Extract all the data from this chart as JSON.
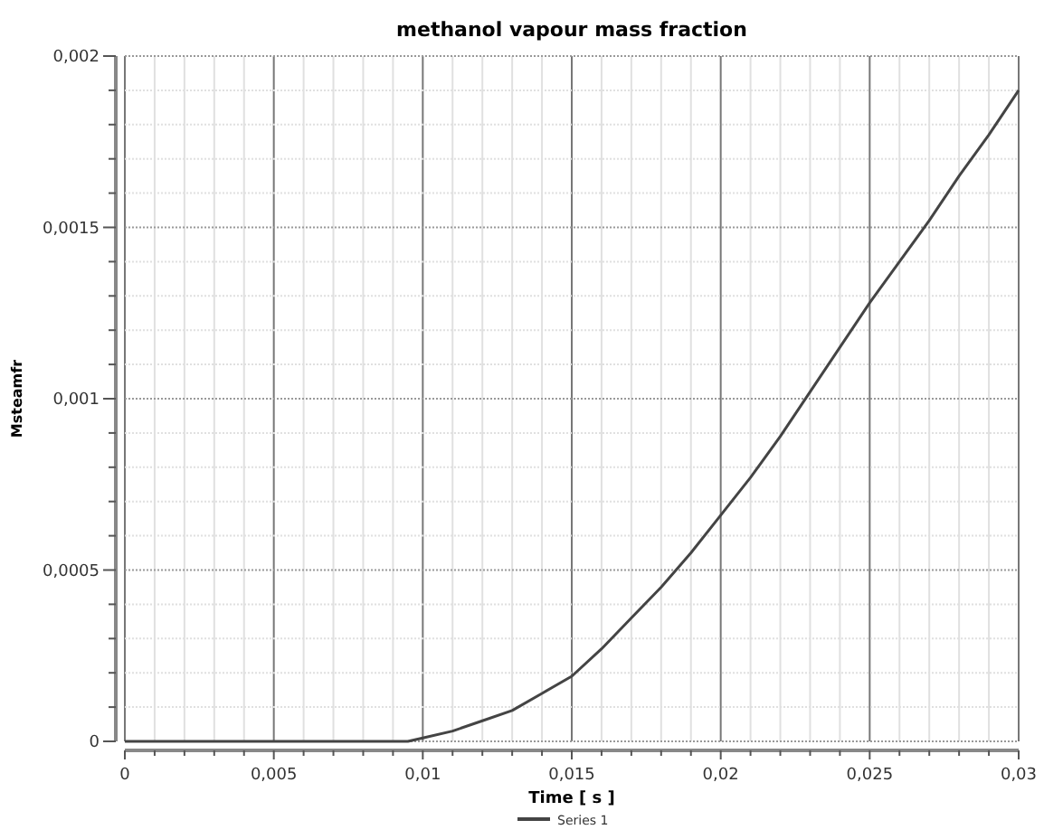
{
  "chart_data": {
    "type": "line",
    "title": "methanol vapour mass fraction",
    "xlabel": "Time [ s ]",
    "ylabel": "Msteamfr",
    "x": [
      0,
      0.005,
      0.009,
      0.0095,
      0.01,
      0.011,
      0.012,
      0.013,
      0.014,
      0.015,
      0.016,
      0.017,
      0.018,
      0.019,
      0.02,
      0.021,
      0.022,
      0.023,
      0.024,
      0.025,
      0.026,
      0.027,
      0.028,
      0.029,
      0.03
    ],
    "series": [
      {
        "name": "Series 1",
        "color": "#444444",
        "values": [
          0,
          0,
          0,
          0,
          1e-05,
          3e-05,
          6e-05,
          9e-05,
          0.00014,
          0.00019,
          0.00027,
          0.00036,
          0.00045,
          0.00055,
          0.00066,
          0.00077,
          0.00089,
          0.00102,
          0.00115,
          0.00128,
          0.0014,
          0.00152,
          0.00165,
          0.00177,
          0.0019
        ]
      }
    ],
    "xlim": [
      0,
      0.03
    ],
    "ylim": [
      0,
      0.002
    ],
    "xticks": [
      0,
      {
        "value": 0.001,
        "label": null
      },
      {
        "value": 0.002,
        "label": null
      },
      {
        "value": 0.003,
        "label": null
      },
      {
        "value": 0.004,
        "label": null
      },
      {
        "value": 0.005,
        "label": "0,005"
      },
      {
        "value": 0.006,
        "label": null
      },
      {
        "value": 0.007,
        "label": null
      },
      {
        "value": 0.008,
        "label": null
      },
      {
        "value": 0.009,
        "label": null
      },
      {
        "value": 0.01,
        "label": "0,01"
      },
      {
        "value": 0.011,
        "label": null
      },
      {
        "value": 0.012,
        "label": null
      },
      {
        "value": 0.013,
        "label": null
      },
      {
        "value": 0.014,
        "label": null
      },
      {
        "value": 0.015,
        "label": "0,015"
      },
      {
        "value": 0.016,
        "label": null
      },
      {
        "value": 0.017,
        "label": null
      },
      {
        "value": 0.018,
        "label": null
      },
      {
        "value": 0.019,
        "label": null
      },
      {
        "value": 0.02,
        "label": "0,02"
      },
      {
        "value": 0.021,
        "label": null
      },
      {
        "value": 0.022,
        "label": null
      },
      {
        "value": 0.023,
        "label": null
      },
      {
        "value": 0.024,
        "label": null
      },
      {
        "value": 0.025,
        "label": "0,025"
      },
      {
        "value": 0.026,
        "label": null
      },
      {
        "value": 0.027,
        "label": null
      },
      {
        "value": 0.028,
        "label": null
      },
      {
        "value": 0.029,
        "label": null
      },
      {
        "value": 0.03,
        "label": "0,03"
      }
    ],
    "yticks": [
      0,
      {
        "value": 0.0001,
        "label": null
      },
      {
        "value": 0.0002,
        "label": null
      },
      {
        "value": 0.0003,
        "label": null
      },
      {
        "value": 0.0004,
        "label": null
      },
      {
        "value": 0.0005,
        "label": "0,0005"
      },
      {
        "value": 0.0006,
        "label": null
      },
      {
        "value": 0.0007,
        "label": null
      },
      {
        "value": 0.0008,
        "label": null
      },
      {
        "value": 0.0009,
        "label": null
      },
      {
        "value": 0.001,
        "label": "0,001"
      },
      {
        "value": 0.0011,
        "label": null
      },
      {
        "value": 0.0012,
        "label": null
      },
      {
        "value": 0.0013,
        "label": null
      },
      {
        "value": 0.0014,
        "label": null
      },
      {
        "value": 0.0015,
        "label": "0,0015"
      },
      {
        "value": 0.0016,
        "label": null
      },
      {
        "value": 0.0017,
        "label": null
      },
      {
        "value": 0.0018,
        "label": null
      },
      {
        "value": 0.0019,
        "label": null
      },
      {
        "value": 0.002,
        "label": "0,002"
      }
    ],
    "grid": true,
    "legend": "bottom",
    "line_style": "solid",
    "marker": "none"
  }
}
